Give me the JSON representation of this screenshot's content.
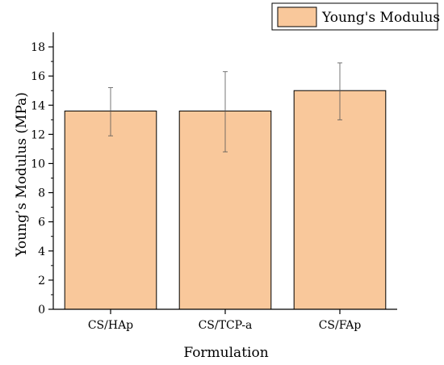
{
  "chart_data": {
    "type": "bar",
    "title": "",
    "categories": [
      "CS/HAp",
      "CS/TCP-a",
      "CS/FAp"
    ],
    "series": [
      {
        "name": "Young's Modulus",
        "values": [
          13.6,
          13.6,
          15.0
        ],
        "error_low": [
          11.9,
          10.8,
          13.0
        ],
        "error_high": [
          15.2,
          16.3,
          16.9
        ],
        "color": "#f9c89b",
        "edge_color": "#000000"
      }
    ],
    "xlabel": "Formulation",
    "ylabel": "Young’s Modulus (MPa)",
    "ylim": [
      0,
      19
    ],
    "yticks": [
      0,
      2,
      4,
      6,
      8,
      10,
      12,
      14,
      16,
      18
    ],
    "ytick_labels": [
      "0",
      "2",
      "4",
      "6",
      "8",
      "10",
      "12",
      "14",
      "16",
      "18"
    ],
    "grid": false,
    "legend_position": "top-right"
  }
}
